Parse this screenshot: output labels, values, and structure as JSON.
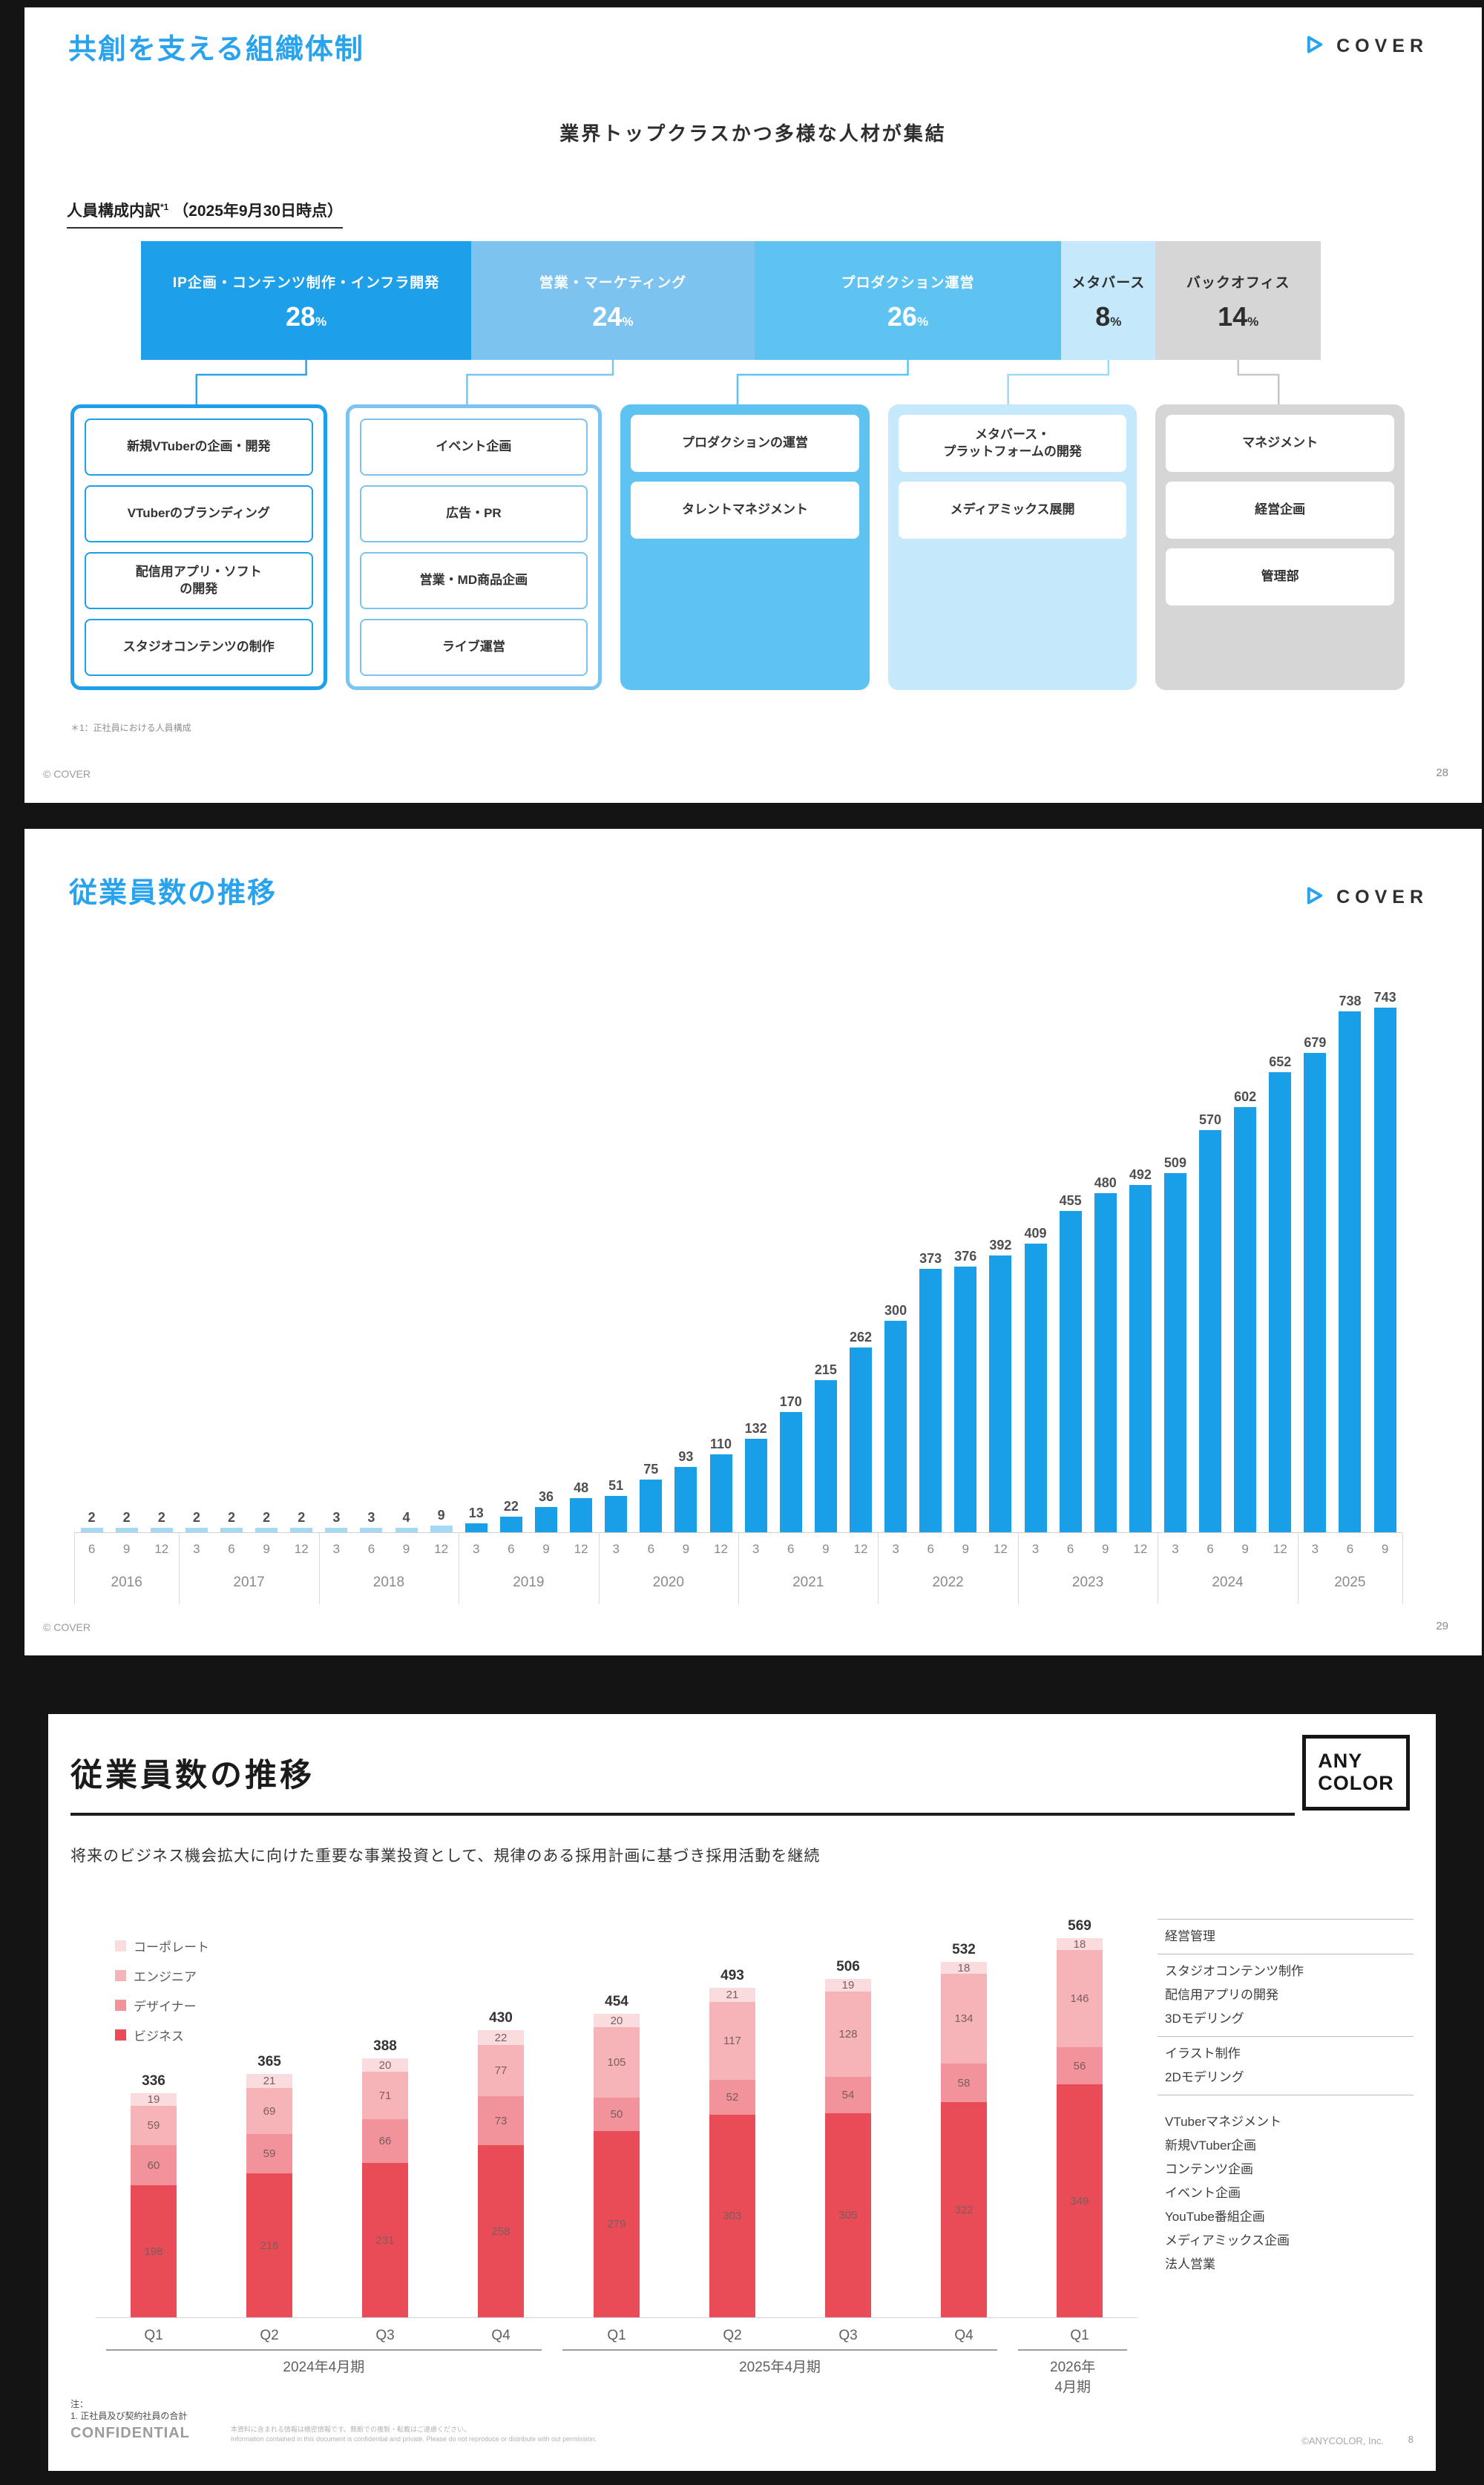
{
  "slide1": {
    "title": "共創を支える組織体制",
    "brand": "COVER",
    "subtitle": "業界トップクラスかつ多様な人材が集結",
    "section_label": "人員構成内訳",
    "section_sup": "*1",
    "section_date": "（2025年9月30日時点）",
    "footnote": "＊1：正社員における人員構成",
    "copyright": "© COVER",
    "page_number": "28",
    "segments": [
      {
        "label": "IP企画・コンテンツ制作・インフラ開発",
        "percent": "28",
        "width": 28,
        "bg": "#1E9FE9",
        "fg": "#ffffff",
        "panel": "outline",
        "connector": "#29A3EE",
        "items": [
          "新規VTuberの企画・開発",
          "VTuberのブランディング",
          "配信用アプリ・ソフト\nの開発",
          "スタジオコンテンツの制作"
        ]
      },
      {
        "label": "営業・マーケティング",
        "percent": "24",
        "width": 24,
        "bg": "#7CC3EF",
        "fg": "#ffffff",
        "panel": "outline",
        "connector": "#7CC3EF",
        "items": [
          "イベント企画",
          "広告・PR",
          "営業・MD商品企画",
          "ライブ運営"
        ]
      },
      {
        "label": "プロダクション運営",
        "percent": "26",
        "width": 26,
        "bg": "#5EC3F1",
        "fg": "#ffffff",
        "panel": "fill",
        "connector": "#5EC3F1",
        "items": [
          "プロダクションの運営",
          "タレントマネジメント"
        ]
      },
      {
        "label": "メタバース",
        "percent": "8",
        "width": 8,
        "bg": "#C5E8FB",
        "fg": "#2e2e2e",
        "panel": "fill",
        "connector": "#9ED9F7",
        "items": [
          "メタバース・\nプラットフォームの開発",
          "メディアミックス展開"
        ]
      },
      {
        "label": "バックオフィス",
        "percent": "14",
        "width": 14,
        "bg": "#D6D6D6",
        "fg": "#2e2e2e",
        "panel": "fill",
        "connector": "#C6C6C6",
        "items": [
          "マネジメント",
          "経営企画",
          "管理部"
        ]
      }
    ]
  },
  "slide2": {
    "title": "従業員数の推移",
    "brand": "COVER",
    "copyright": "© COVER",
    "page_number": "29"
  },
  "slide3": {
    "title": "従業員数の推移",
    "brand_lines": [
      "ANY",
      "COLOR"
    ],
    "subtitle": "将来のビジネス機会拡大に向けた重要な事業投資として、規律のある採用計画に基づき採用活動を継続",
    "role_groups": [
      [
        "経営管理"
      ],
      [
        "スタジオコンテンツ制作",
        "配信用アプリの開発",
        "3Dモデリング"
      ],
      [
        "イラスト制作",
        "2Dモデリング"
      ],
      [
        "VTuberマネジメント",
        "新規VTuber企画",
        "コンテンツ企画",
        "イベント企画",
        "YouTube番組企画",
        "メディアミックス企画",
        "法人営業"
      ]
    ],
    "notes": [
      "注：",
      "1. 正社員及び契約社員の合計"
    ],
    "confidential": "CONFIDENTIAL",
    "confidential_jp": "本資料に含まれる情報は機密情報です。無断での複製・転載はご遠慮ください。",
    "confidential_en": "Information contained in this document is confidential and private. Please do not reproduce or distribute with out permission.",
    "copyright": "©ANYCOLOR, Inc.",
    "page_number": "8"
  },
  "chart_data": [
    {
      "type": "bar",
      "title": "従業員数の推移",
      "company": "COVER",
      "values": [
        2,
        2,
        2,
        2,
        2,
        2,
        2,
        3,
        3,
        4,
        9,
        13,
        22,
        36,
        48,
        51,
        75,
        93,
        110,
        132,
        170,
        215,
        262,
        300,
        373,
        376,
        392,
        409,
        455,
        480,
        492,
        509,
        570,
        602,
        652,
        679,
        738,
        743
      ],
      "month_labels": [
        6,
        9,
        12,
        3,
        6,
        9,
        12,
        3,
        6,
        9,
        12,
        3,
        6,
        9,
        12,
        3,
        6,
        9,
        12,
        3,
        6,
        9,
        12,
        3,
        6,
        9,
        12,
        3,
        6,
        9,
        12,
        3,
        6,
        9,
        12,
        3,
        6,
        9
      ],
      "year_groups": [
        {
          "label": "2016",
          "count": 3
        },
        {
          "label": "2017",
          "count": 4
        },
        {
          "label": "2018",
          "count": 4
        },
        {
          "label": "2019",
          "count": 4
        },
        {
          "label": "2020",
          "count": 4
        },
        {
          "label": "2021",
          "count": 4
        },
        {
          "label": "2022",
          "count": 4
        },
        {
          "label": "2023",
          "count": 4
        },
        {
          "label": "2024",
          "count": 4
        },
        {
          "label": "2025",
          "count": 3
        }
      ],
      "bar_color": "#199FE8",
      "small_bar_color": "#A5D8F3",
      "ylim": [
        0,
        743
      ],
      "grid": false,
      "legend": "none"
    },
    {
      "type": "stacked-bar",
      "title": "従業員数の推移",
      "company": "ANYCOLOR",
      "categories": [
        "Q1",
        "Q2",
        "Q3",
        "Q4",
        "Q1",
        "Q2",
        "Q3",
        "Q4",
        "Q1"
      ],
      "year_groups": [
        {
          "label": "2024年4月期",
          "count": 4
        },
        {
          "label": "2025年4月期",
          "count": 4
        },
        {
          "label": "2026年\n4月期",
          "count": 1
        }
      ],
      "series": [
        {
          "name": "ビジネス",
          "color": "#E94C57",
          "values": [
            198,
            216,
            231,
            258,
            279,
            303,
            305,
            322,
            349
          ]
        },
        {
          "name": "デザイナー",
          "color": "#F2929A",
          "values": [
            60,
            59,
            66,
            73,
            50,
            52,
            54,
            58,
            56
          ]
        },
        {
          "name": "エンジニア",
          "color": "#F6B3B8",
          "values": [
            59,
            69,
            71,
            77,
            105,
            117,
            128,
            134,
            146
          ]
        },
        {
          "name": "コーポレート",
          "color": "#FADCDE",
          "values": [
            19,
            21,
            20,
            22,
            20,
            21,
            19,
            18,
            18
          ]
        }
      ],
      "totals": [
        336,
        365,
        388,
        430,
        454,
        493,
        506,
        532,
        569
      ],
      "legend_order": [
        "コーポレート",
        "エンジニア",
        "デザイナー",
        "ビジネス"
      ],
      "ylim": [
        0,
        600
      ],
      "grid": false,
      "legend": "top-left"
    }
  ]
}
